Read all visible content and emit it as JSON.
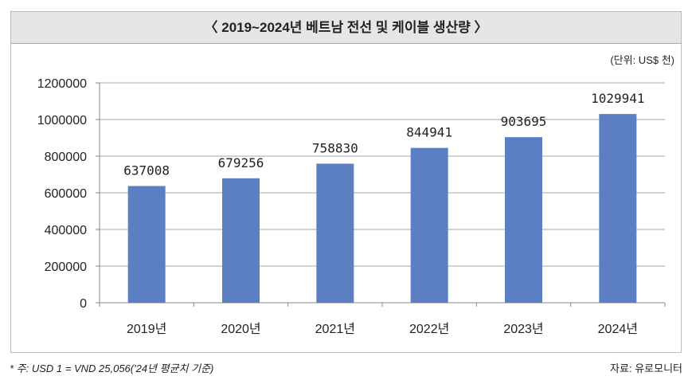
{
  "header": {
    "title": "〈 2019~2024년 베트남 전선 및 케이블 생산량 〉",
    "unit": "(단위: US$ 천)"
  },
  "footer": {
    "note": "* 주: USD 1 = VND 25,056('24년 평균치 기준)",
    "source": "자료: 유로모니터"
  },
  "colors": {
    "bar": "#5b7fc2",
    "grid": "#a6a6a6"
  },
  "chart_data": {
    "type": "bar",
    "title": "〈 2019~2024년 베트남 전선 및 케이블 생산량 〉",
    "categories": [
      "2019년",
      "2020년",
      "2021년",
      "2022년",
      "2023년",
      "2024년"
    ],
    "values": [
      637008,
      679256,
      758830,
      844941,
      903695,
      1029941
    ],
    "ylabel": "US$ 천",
    "ylim": [
      0,
      1200000
    ],
    "yticks": [
      0,
      200000,
      400000,
      600000,
      800000,
      1000000,
      1200000
    ],
    "grid": true,
    "legend": "none"
  }
}
